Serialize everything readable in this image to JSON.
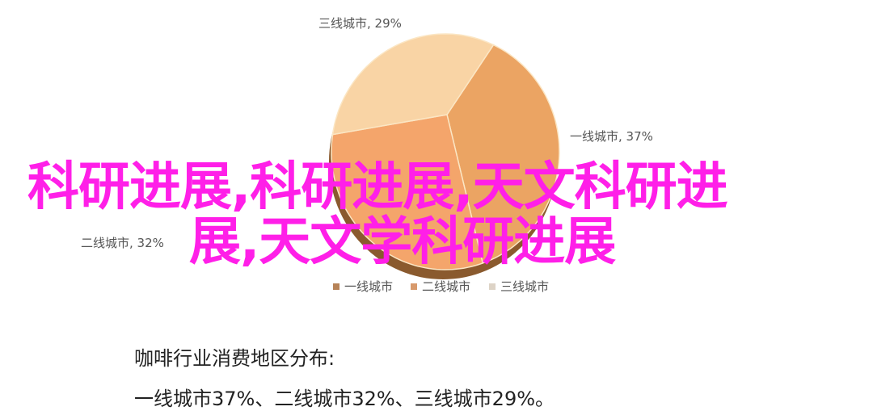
{
  "chart_data": {
    "type": "pie",
    "title": "",
    "slices": [
      {
        "name": "一线城市",
        "value": 37,
        "label": "一线城市, 37%",
        "color": "#eba463"
      },
      {
        "name": "二线城市",
        "value": 32,
        "label": "二线城市, 32%",
        "color": "#f4a56b"
      },
      {
        "name": "三线城市",
        "value": 29,
        "label": "三线城市, 29%",
        "color": "#f9d4a5"
      }
    ],
    "legend": {
      "placement": "bottom",
      "entries": [
        {
          "label": "一线城市",
          "color": "#b78358"
        },
        {
          "label": "二线城市",
          "color": "#d89a6c"
        },
        {
          "label": "三线城市",
          "color": "#ddd3c6"
        }
      ]
    },
    "style": "3d"
  },
  "overlay": {
    "line1": "科研进展,科研进展,天文科研进",
    "line2": "展,天文学科研进展",
    "color": "#ff1fe8"
  },
  "caption": {
    "heading": "咖啡行业消费地区分布:",
    "body": "一线城市37%、二线城市32%、三线城市29%。"
  }
}
